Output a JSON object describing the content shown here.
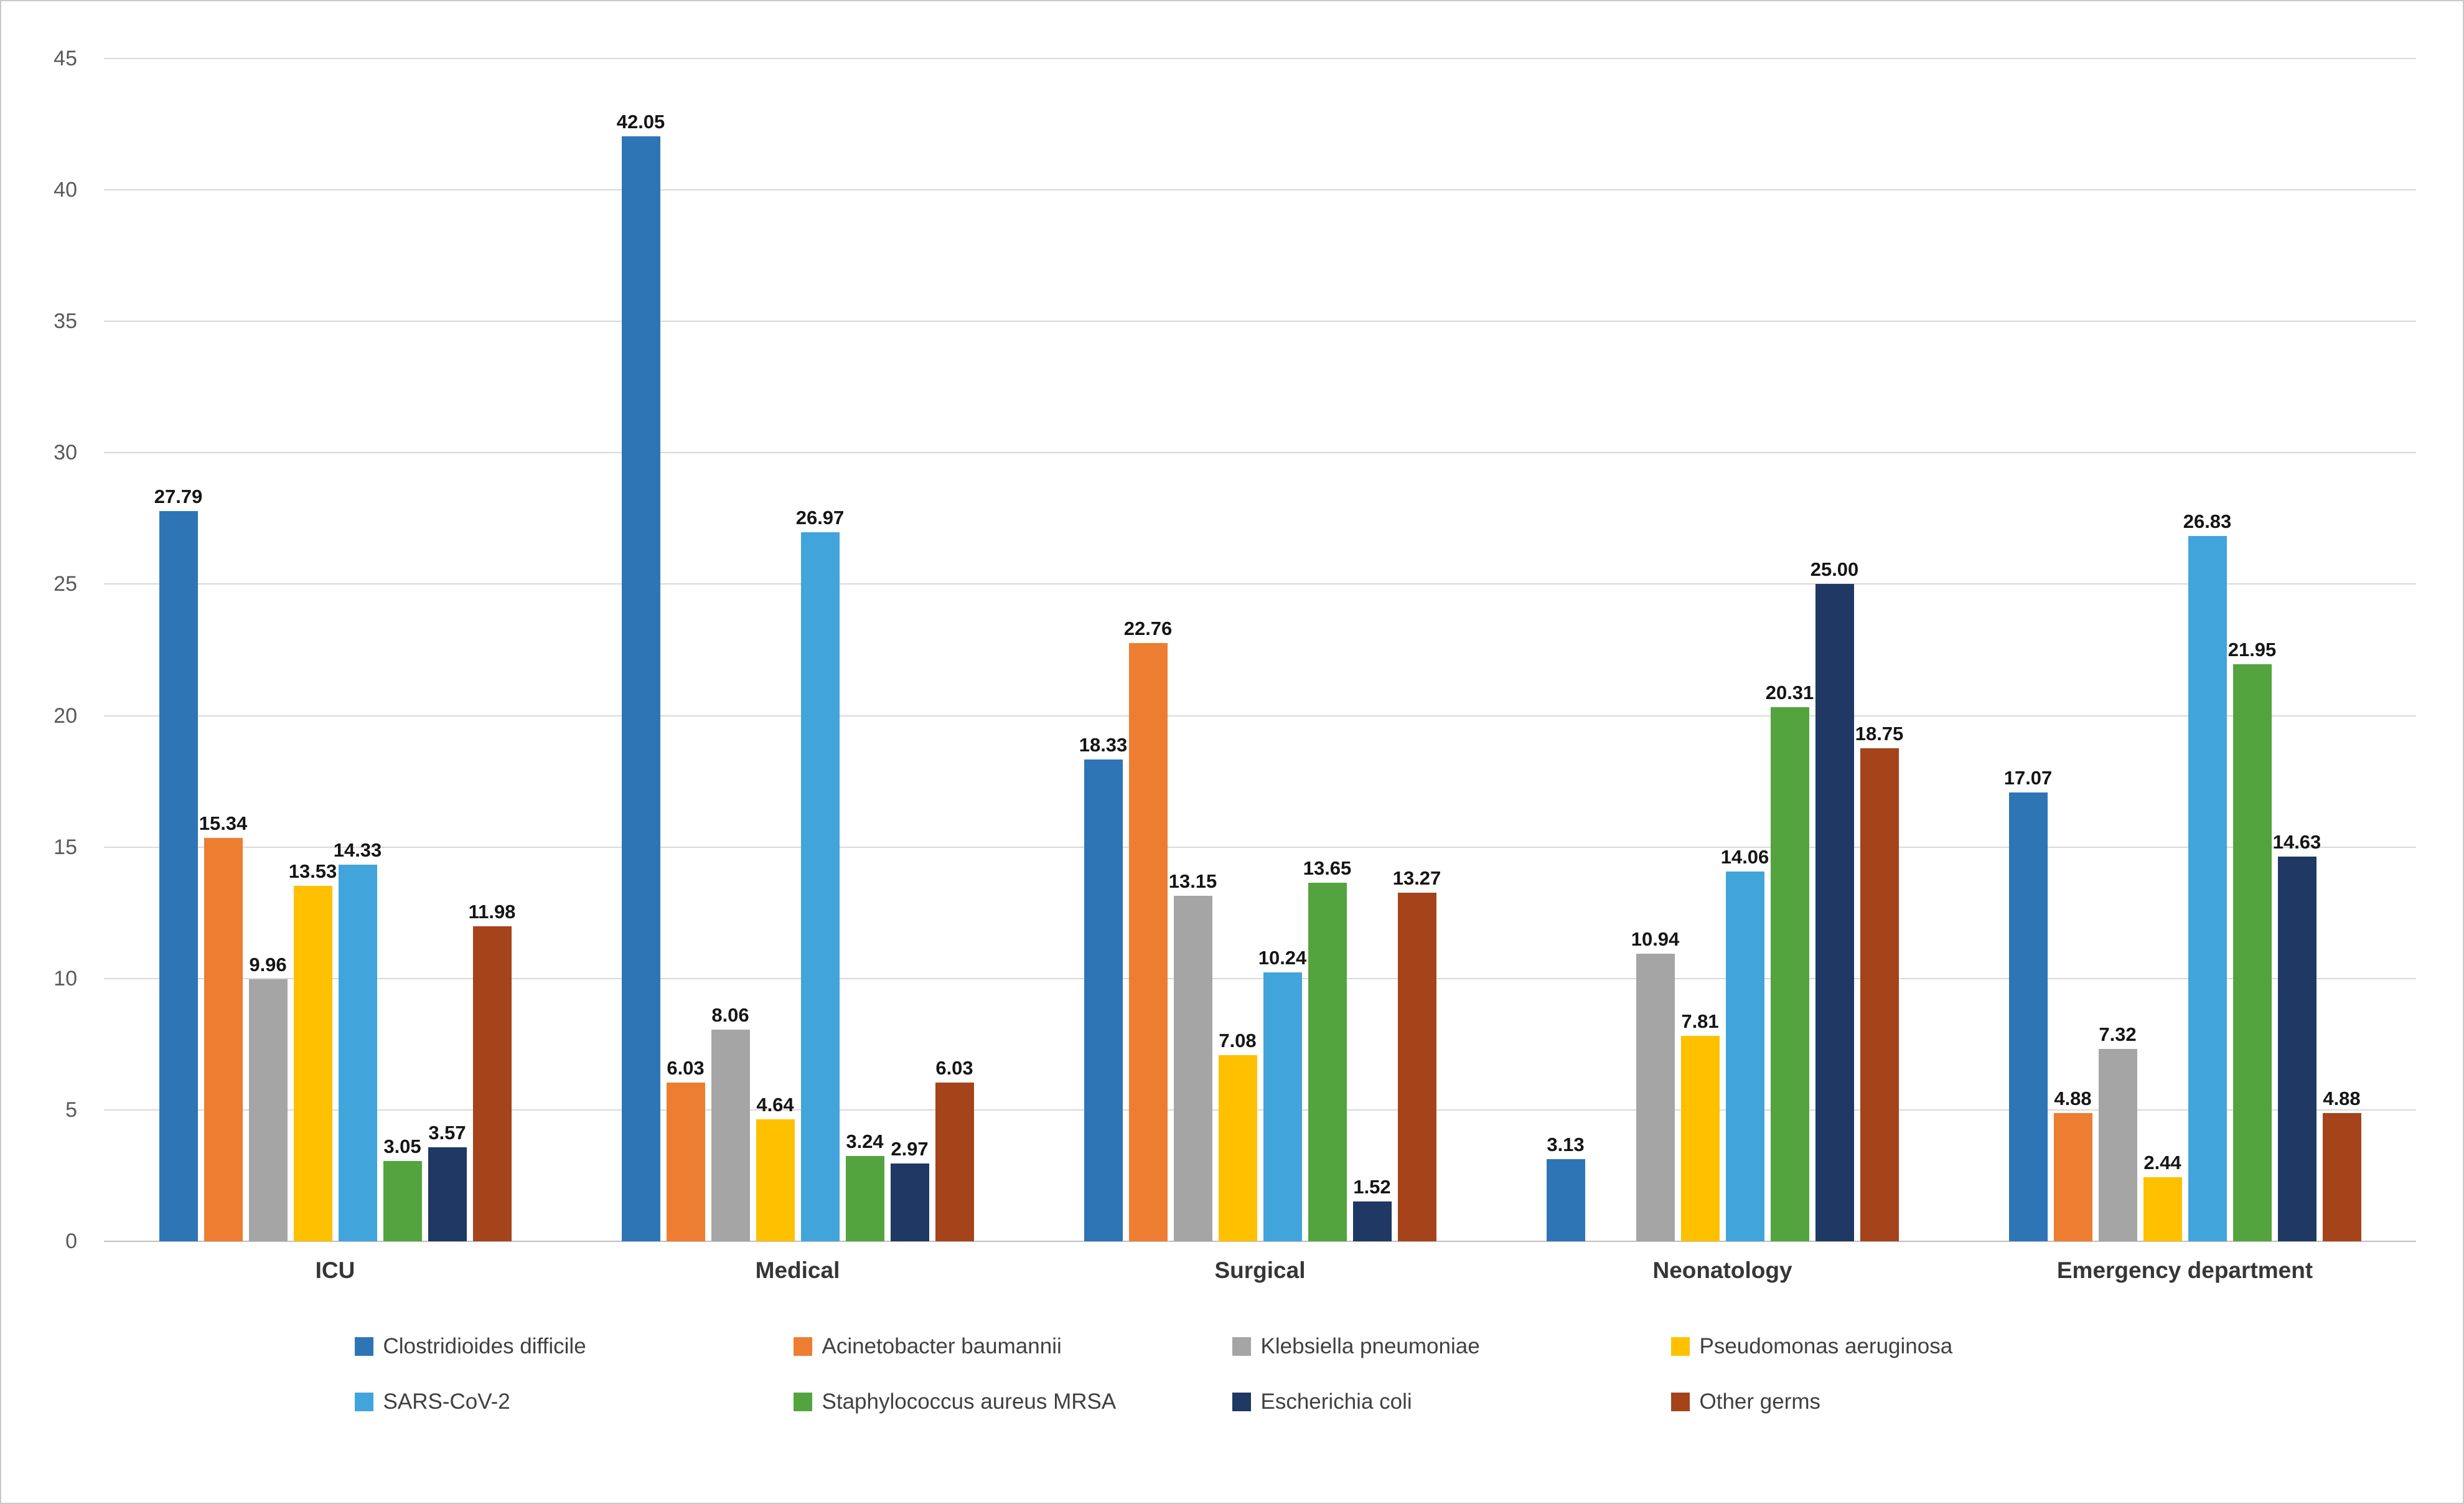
{
  "chart_data": {
    "type": "bar",
    "title": "",
    "xlabel": "",
    "ylabel": "",
    "categories": [
      "ICU",
      "Medical",
      "Surgical",
      "Neonatology",
      "Emergency department"
    ],
    "series": [
      {
        "name": "Clostridioides difficile",
        "color": "#2E75B6",
        "values": [
          27.79,
          42.05,
          18.33,
          3.13,
          17.07
        ]
      },
      {
        "name": "Acinetobacter baumannii",
        "color": "#ED7D31",
        "values": [
          15.34,
          6.03,
          22.76,
          0,
          4.88
        ]
      },
      {
        "name": "Klebsiella pneumoniae",
        "color": "#A5A5A5",
        "values": [
          9.96,
          8.06,
          13.15,
          10.94,
          7.32
        ]
      },
      {
        "name": "Pseudomonas aeruginosa",
        "color": "#FFC000",
        "values": [
          13.53,
          4.64,
          7.08,
          7.81,
          2.44
        ]
      },
      {
        "name": "SARS-CoV-2",
        "color": "#41A5DC",
        "values": [
          14.33,
          26.97,
          10.24,
          14.06,
          26.83
        ]
      },
      {
        "name": "Staphylococcus aureus MRSA",
        "color": "#53A43E",
        "values": [
          3.05,
          3.24,
          13.65,
          20.31,
          21.95
        ]
      },
      {
        "name": "Escherichia coli",
        "color": "#1F3864",
        "values": [
          3.57,
          2.97,
          1.52,
          25.0,
          14.63
        ]
      },
      {
        "name": "Other germs",
        "color": "#A5431B",
        "values": [
          11.98,
          6.03,
          13.27,
          18.75,
          4.88
        ]
      }
    ],
    "ylim": [
      0,
      45
    ],
    "ytick_step": 5,
    "grid": true,
    "value_labels": true,
    "label_decimals": 2,
    "legend_position": "bottom",
    "legend_rows": [
      [
        0,
        1,
        2,
        3
      ],
      [
        4,
        5,
        6,
        7
      ]
    ],
    "style": {
      "gridline_color": "#d9d9d9",
      "baseline_color": "#bfbfbf",
      "axis_text_color": "#595959",
      "category_text_color": "#363636",
      "value_label_color": "#151515",
      "legend_text_color": "#404040",
      "frame_border_color": "#c9c9c9",
      "background": "#ffffff"
    }
  }
}
